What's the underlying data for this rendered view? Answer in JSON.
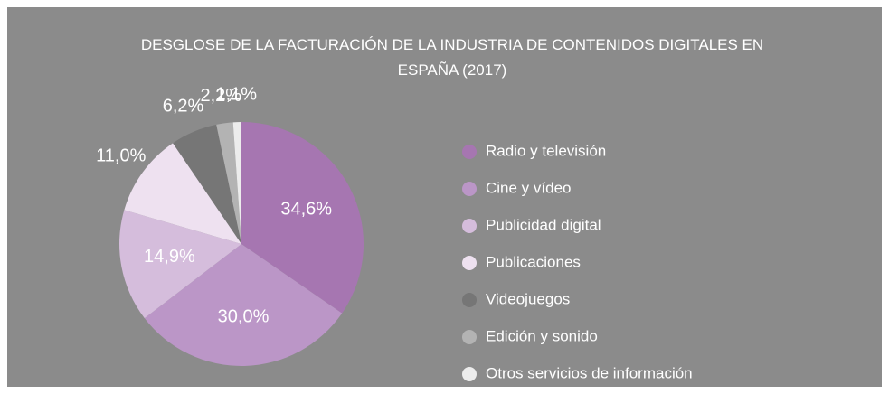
{
  "chart_data": {
    "type": "pie",
    "title": "DESGLOSE DE LA FACTURACIÓN DE LA INDUSTRIA DE CONTENIDOS DIGITALES EN ESPAÑA (2017)",
    "categories": [
      "Radio y televisión",
      "Cine y vídeo",
      "Publicidad digital",
      "Publicaciones",
      "Videojuegos",
      "Edición y sonido",
      "Otros servicios de información"
    ],
    "values": [
      34.6,
      30.0,
      14.9,
      11.0,
      6.2,
      2.2,
      1.1
    ],
    "value_labels": [
      "34,6%",
      "30,0%",
      "14,9%",
      "11,0%",
      "6,2%",
      "2,2%",
      "1,1%"
    ],
    "colors": [
      "#a676b1",
      "#bb96c7",
      "#d5bddc",
      "#eee1f0",
      "#767676",
      "#b3b3b3",
      "#ececec"
    ],
    "legend": "right"
  }
}
